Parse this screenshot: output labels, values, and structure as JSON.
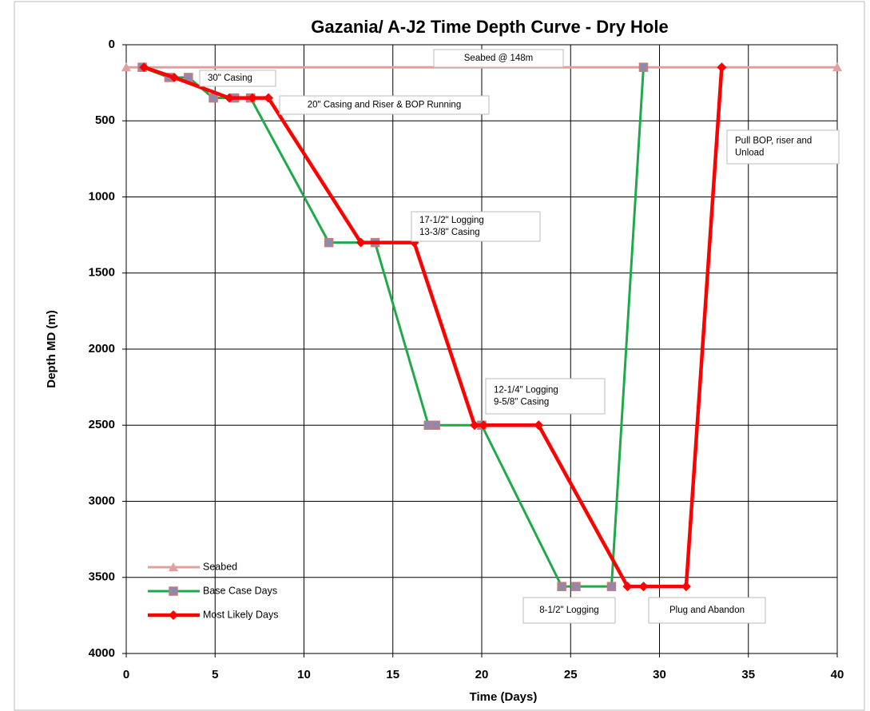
{
  "chart_data": {
    "type": "line",
    "title": "Gazania/ A-J2  Time Depth Curve - Dry Hole",
    "x_label": "Time (Days)",
    "y_label": "Depth MD (m)",
    "xlim": [
      0,
      40
    ],
    "xticks": [
      0,
      5,
      10,
      15,
      20,
      25,
      30,
      35,
      40
    ],
    "ylim": [
      0,
      4000
    ],
    "yticks": [
      0,
      500,
      1000,
      1500,
      2000,
      2500,
      3000,
      3500,
      4000
    ],
    "y_inverted": true,
    "grid": true,
    "legend": "lower left",
    "series": [
      {
        "name": "Seabed",
        "color": "#e0a09e",
        "marker": "triangle",
        "x": [
          0,
          40
        ],
        "values": [
          148,
          148
        ]
      },
      {
        "name": "Base Case Days",
        "color": "#1faa4a",
        "marker": "square",
        "x": [
          0.9,
          2.4,
          3.5,
          4.9,
          6.1,
          7.0,
          11.4,
          14.0,
          17.0,
          17.4,
          20.0,
          24.5,
          25.3,
          27.3,
          29.1
        ],
        "values": [
          148,
          215,
          215,
          350,
          350,
          350,
          1300,
          1300,
          2500,
          2500,
          2500,
          3560,
          3560,
          3560,
          148
        ]
      },
      {
        "name": "Most Likely Days",
        "color": "#ff0000",
        "marker": "diamond",
        "x": [
          1.0,
          2.7,
          5.8,
          7.1,
          8.0,
          13.2,
          16.2,
          19.6,
          20.1,
          23.2,
          28.2,
          29.1,
          31.5,
          33.5
        ],
        "values": [
          148,
          215,
          350,
          350,
          350,
          1300,
          1300,
          2500,
          2500,
          2500,
          3560,
          3560,
          3560,
          148
        ]
      }
    ],
    "annotations": [
      [
        "Seabed @ 148m"
      ],
      [
        "30\" Casing"
      ],
      [
        "20\" Casing and Riser & BOP Running"
      ],
      [
        "Pull BOP, riser and",
        "Unload"
      ],
      [
        "17-1/2\" Logging",
        "13-3/8\" Casing"
      ],
      [
        "12-1/4\" Logging",
        "9-5/8\" Casing"
      ],
      [
        "8-1/2\" Logging"
      ],
      [
        "Plug and Abandon"
      ]
    ]
  }
}
